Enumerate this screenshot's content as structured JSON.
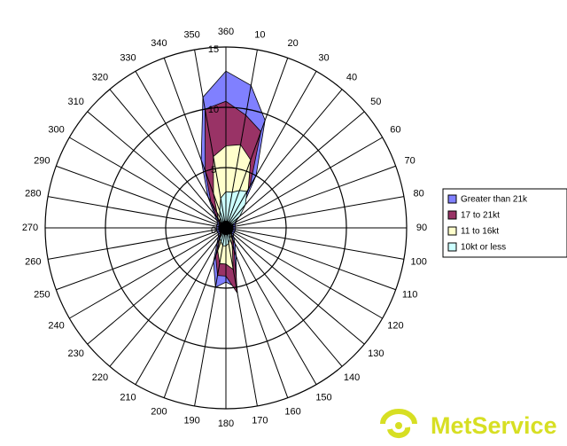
{
  "chart_data": {
    "type": "radar",
    "categories": [
      "360",
      "10",
      "20",
      "30",
      "40",
      "50",
      "60",
      "70",
      "80",
      "90",
      "100",
      "110",
      "120",
      "130",
      "140",
      "150",
      "160",
      "170",
      "180",
      "190",
      "200",
      "210",
      "220",
      "230",
      "240",
      "250",
      "260",
      "270",
      "280",
      "290",
      "300",
      "310",
      "320",
      "330",
      "340",
      "350"
    ],
    "ylim": [
      0,
      15
    ],
    "yticks": [
      0,
      5,
      10,
      15
    ],
    "grid": true,
    "legend": "right",
    "series": [
      {
        "name": "Greater than 21k",
        "color": "#8080ff",
        "values": [
          13,
          12,
          9.5,
          5,
          2,
          1.2,
          1,
          0.8,
          0.8,
          0.8,
          0.8,
          0.8,
          0.8,
          0.8,
          1,
          1.5,
          2.5,
          5,
          4.5,
          5,
          3,
          1.5,
          1,
          0.8,
          0.8,
          0.8,
          0.8,
          0.8,
          0.8,
          0.8,
          0.8,
          1,
          1.5,
          3,
          6,
          11
        ]
      },
      {
        "name": "17 to 21kt",
        "color": "#993366",
        "values": [
          10.5,
          9.5,
          8.5,
          4,
          1.5,
          1,
          0.7,
          0.6,
          0.6,
          0.6,
          0.6,
          0.6,
          0.6,
          0.6,
          0.8,
          1.2,
          2,
          5.5,
          4,
          4,
          2.5,
          1.2,
          0.8,
          0.6,
          0.6,
          0.6,
          0.6,
          0.6,
          0.6,
          0.6,
          0.6,
          0.8,
          1.2,
          2.5,
          5,
          10
        ]
      },
      {
        "name": "11 to 16kt",
        "color": "#ffffcc",
        "values": [
          6.8,
          7,
          6,
          3.7,
          2,
          1,
          0.5,
          0.5,
          0.5,
          0.5,
          0.5,
          0.5,
          0.5,
          0.5,
          0.7,
          1,
          1.5,
          3.5,
          3,
          3,
          2,
          1,
          0.6,
          0.5,
          0.5,
          0.5,
          0.5,
          0.5,
          0.5,
          0.5,
          0.5,
          0.6,
          1,
          1.5,
          3,
          6
        ]
      },
      {
        "name": "10kt or less",
        "color": "#ccffff",
        "values": [
          3,
          3,
          3.3,
          3.5,
          2.5,
          1.5,
          0.8,
          0.5,
          0.4,
          0.4,
          0.4,
          0.4,
          0.4,
          0.4,
          0.5,
          0.7,
          1,
          1.3,
          1.5,
          1.5,
          1.2,
          1,
          0.6,
          0.4,
          0.4,
          0.4,
          0.4,
          0.4,
          0.4,
          0.4,
          0.4,
          0.5,
          0.7,
          1,
          1.5,
          2.5
        ]
      }
    ]
  },
  "brand": "MetService"
}
